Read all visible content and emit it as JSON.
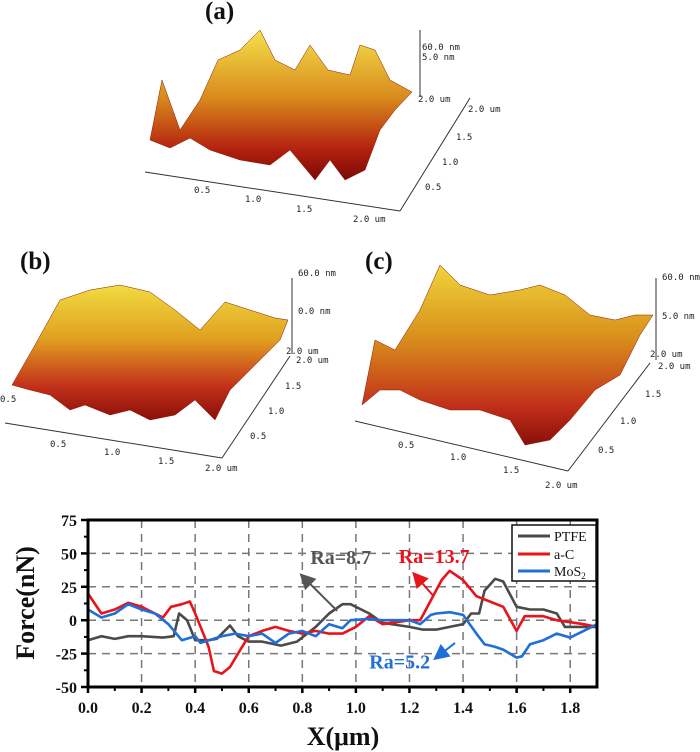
{
  "figure": {
    "panels": [
      {
        "label": "(a)",
        "z_labels": [
          "60.0 nm",
          "5.0 nm"
        ],
        "x_ticks": [
          "0.5",
          "1.0",
          "1.5",
          "2.0 um"
        ],
        "y_ticks": [
          "0.5",
          "1.0",
          "1.5",
          "2.0 um"
        ],
        "corner_label": "2.0 um",
        "left_ticks": [
          "2.0",
          "1",
          "0.5"
        ]
      },
      {
        "label": "(b)",
        "z_labels": [
          "60.0 nm",
          "0.0 nm"
        ],
        "x_ticks": [
          "0.5",
          "1.0",
          "1.5",
          "2.0 um"
        ],
        "y_ticks": [
          "0.5",
          "1.0",
          "1.5",
          "2.0 um"
        ],
        "corner_label": "2.0 um",
        "left_ticks": [
          "2",
          "1",
          "0.5"
        ]
      },
      {
        "label": "(c)",
        "z_labels": [
          "60.0 nm",
          "5.0 nm"
        ],
        "x_ticks": [
          "0.5",
          "1.0",
          "1.5",
          "2.0 um"
        ],
        "y_ticks": [
          "0.5",
          "1.0",
          "1.5",
          "2.0 um"
        ],
        "corner_label": "2.0 um",
        "left_ticks": [
          "2",
          "1",
          "0"
        ]
      }
    ],
    "afm_colors": {
      "low": "#7a0a06",
      "mid": "#d2450f",
      "high": "#f4e24a"
    }
  },
  "chart_data": {
    "type": "line",
    "title": "",
    "xlabel": "X(μm)",
    "ylabel": "Force(nN)",
    "xlim": [
      0,
      1.9
    ],
    "ylim": [
      -50,
      75
    ],
    "x_ticks": [
      "0.0",
      "0.2",
      "0.4",
      "0.6",
      "0.8",
      "1.0",
      "1.2",
      "1.4",
      "1.6",
      "1.8"
    ],
    "x_tick_values": [
      0,
      0.2,
      0.4,
      0.6,
      0.8,
      1.0,
      1.2,
      1.4,
      1.6,
      1.8
    ],
    "y_ticks": [
      "75",
      "50",
      "25",
      "0",
      "-25",
      "-50"
    ],
    "y_tick_values": [
      75,
      50,
      25,
      0,
      -25,
      -50
    ],
    "grid": true,
    "legend_position": "top-right",
    "series": [
      {
        "name": "PTFE",
        "color": "#4a4a4a",
        "x": [
          0,
          0.05,
          0.1,
          0.15,
          0.2,
          0.28,
          0.32,
          0.34,
          0.37,
          0.4,
          0.45,
          0.48,
          0.53,
          0.56,
          0.6,
          0.65,
          0.72,
          0.78,
          0.85,
          0.9,
          0.95,
          0.98,
          1.05,
          1.1,
          1.2,
          1.25,
          1.3,
          1.35,
          1.4,
          1.43,
          1.46,
          1.48,
          1.52,
          1.55,
          1.6,
          1.65,
          1.7,
          1.75,
          1.78,
          1.85,
          1.9
        ],
        "y": [
          -15,
          -12,
          -14,
          -12,
          -12,
          -13,
          -12,
          5,
          0,
          -15,
          -15,
          -14,
          -4,
          -12,
          -16,
          -16,
          -19,
          -16,
          -5,
          5,
          12,
          12,
          5,
          -2,
          -5,
          -7,
          -7,
          -5,
          -3,
          5,
          5,
          22,
          31,
          29,
          10,
          8,
          8,
          5,
          -5,
          -5,
          -5
        ]
      },
      {
        "name": "a-C",
        "color": "#e8141b",
        "x": [
          0,
          0.05,
          0.1,
          0.15,
          0.2,
          0.25,
          0.28,
          0.31,
          0.35,
          0.38,
          0.4,
          0.45,
          0.47,
          0.5,
          0.53,
          0.56,
          0.6,
          0.65,
          0.7,
          0.75,
          0.8,
          0.85,
          0.9,
          0.95,
          1.0,
          1.05,
          1.1,
          1.2,
          1.24,
          1.28,
          1.32,
          1.35,
          1.4,
          1.45,
          1.5,
          1.55,
          1.6,
          1.63,
          1.7,
          1.75,
          1.85,
          1.9
        ],
        "y": [
          20,
          5,
          8,
          13,
          10,
          5,
          2,
          10,
          12,
          14,
          5,
          -20,
          -38,
          -40,
          -35,
          -25,
          -12,
          -8,
          -5,
          -8,
          -10,
          -8,
          -10,
          -10,
          -5,
          3,
          -3,
          0,
          0,
          15,
          30,
          37,
          30,
          18,
          14,
          10,
          -8,
          3,
          3,
          0,
          -3,
          -5
        ]
      },
      {
        "name": "MoS2",
        "legend_label": "MoS",
        "legend_sub": "2",
        "color": "#1f6fd6",
        "x": [
          0,
          0.05,
          0.1,
          0.15,
          0.2,
          0.25,
          0.3,
          0.35,
          0.4,
          0.42,
          0.5,
          0.55,
          0.6,
          0.65,
          0.7,
          0.75,
          0.8,
          0.85,
          0.9,
          0.95,
          0.98,
          1.05,
          1.1,
          1.2,
          1.24,
          1.28,
          1.3,
          1.35,
          1.4,
          1.45,
          1.48,
          1.52,
          1.55,
          1.6,
          1.62,
          1.65,
          1.7,
          1.75,
          1.8,
          1.85,
          1.9
        ],
        "y": [
          8,
          2,
          5,
          12,
          8,
          5,
          -3,
          -15,
          -12,
          -17,
          -12,
          -10,
          -12,
          -10,
          -17,
          -10,
          -8,
          -12,
          -3,
          -6,
          0,
          1,
          0,
          0,
          -3,
          4,
          5,
          6,
          4,
          -10,
          -18,
          -20,
          -22,
          -28,
          -27,
          -18,
          -15,
          -10,
          -13,
          -8,
          -3
        ]
      }
    ],
    "annotations": [
      {
        "text": "Ra=8.7",
        "color": "#555555",
        "at": [
          0.83,
          42
        ],
        "arrow_from": [
          0.93,
          7
        ],
        "arrow_to": [
          0.8,
          33
        ]
      },
      {
        "text": "Ra=13.7",
        "color": "#e8141b",
        "at": [
          1.16,
          43
        ],
        "arrow_from": [
          1.29,
          18
        ],
        "arrow_to": [
          1.22,
          34
        ]
      },
      {
        "text": "Ra=5.2",
        "color": "#1f6fd6",
        "at": [
          1.05,
          -36
        ],
        "arrow_from": [
          1.37,
          -17
        ],
        "arrow_to": [
          1.3,
          -28
        ]
      }
    ]
  }
}
